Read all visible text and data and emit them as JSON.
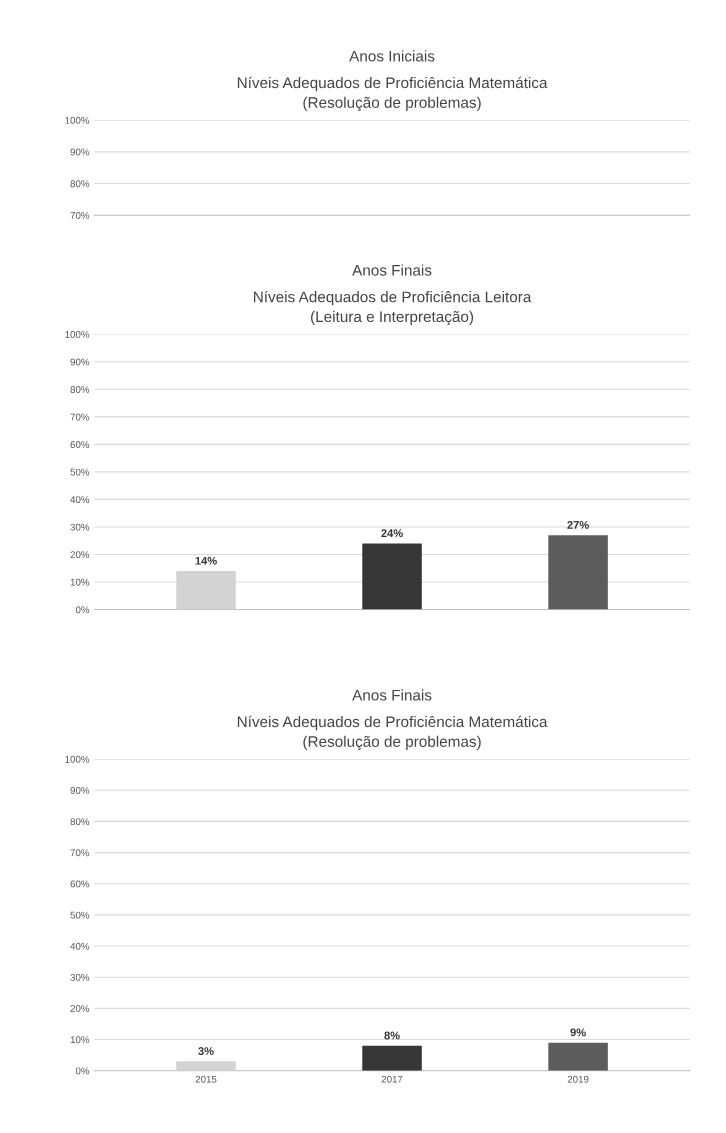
{
  "chart_data": [
    {
      "type": "bar",
      "title": "Anos Iniciais",
      "subtitle": "Níveis Adequados de Proficiência Matemática\n(Resolução de problemas)",
      "categories": [
        null,
        null,
        null
      ],
      "values": [
        null,
        null,
        null
      ],
      "ylim": [
        70,
        100
      ],
      "yticks": [
        {
          "value": 70,
          "label": "70%"
        },
        {
          "value": 80,
          "label": "80%"
        },
        {
          "value": 90,
          "label": "90%"
        },
        {
          "value": 100,
          "label": "100%"
        }
      ],
      "grid": "y",
      "tick_labels": "y"
    },
    {
      "type": "bar",
      "title": "Anos Finais",
      "subtitle": "Níveis Adequados de Proficiência Leitora\n(Leitura e Interpretação)",
      "categories": [
        null,
        null,
        null
      ],
      "values": [
        14,
        24,
        27
      ],
      "colors": [
        "#d3d3d3",
        "#363636",
        "#5c5c5c"
      ],
      "value_labels": [
        "14%",
        "24%",
        "27%"
      ],
      "ylim": [
        0,
        100
      ],
      "yticks": [
        {
          "value": 0,
          "label": "0%"
        },
        {
          "value": 10,
          "label": "10%"
        },
        {
          "value": 20,
          "label": "20%"
        },
        {
          "value": 30,
          "label": "30%"
        },
        {
          "value": 40,
          "label": "40%"
        },
        {
          "value": 50,
          "label": "50%"
        },
        {
          "value": 60,
          "label": "60%"
        },
        {
          "value": 70,
          "label": "70%"
        },
        {
          "value": 80,
          "label": "80%"
        },
        {
          "value": 90,
          "label": "90%"
        },
        {
          "value": 100,
          "label": "100%"
        }
      ],
      "grid": "y",
      "tick_labels": "y"
    },
    {
      "type": "bar",
      "title": "Anos Finais",
      "subtitle": "Níveis Adequados de Proficiência Matemática\n(Resolução de problemas)",
      "categories": [
        "2015",
        "2017",
        "2019"
      ],
      "values": [
        3,
        8,
        9
      ],
      "colors": [
        "#d3d3d3",
        "#363636",
        "#5c5c5c"
      ],
      "value_labels": [
        "3%",
        "8%",
        "9%"
      ],
      "ylim": [
        0,
        100
      ],
      "yticks": [
        {
          "value": 0,
          "label": "0%"
        },
        {
          "value": 10,
          "label": "10%"
        },
        {
          "value": 20,
          "label": "20%"
        },
        {
          "value": 30,
          "label": "30%"
        },
        {
          "value": 40,
          "label": "40%"
        },
        {
          "value": 50,
          "label": "50%"
        },
        {
          "value": 60,
          "label": "60%"
        },
        {
          "value": 70,
          "label": "70%"
        },
        {
          "value": 80,
          "label": "80%"
        },
        {
          "value": 90,
          "label": "90%"
        },
        {
          "value": 100,
          "label": "100%"
        }
      ],
      "grid": "y"
    }
  ]
}
